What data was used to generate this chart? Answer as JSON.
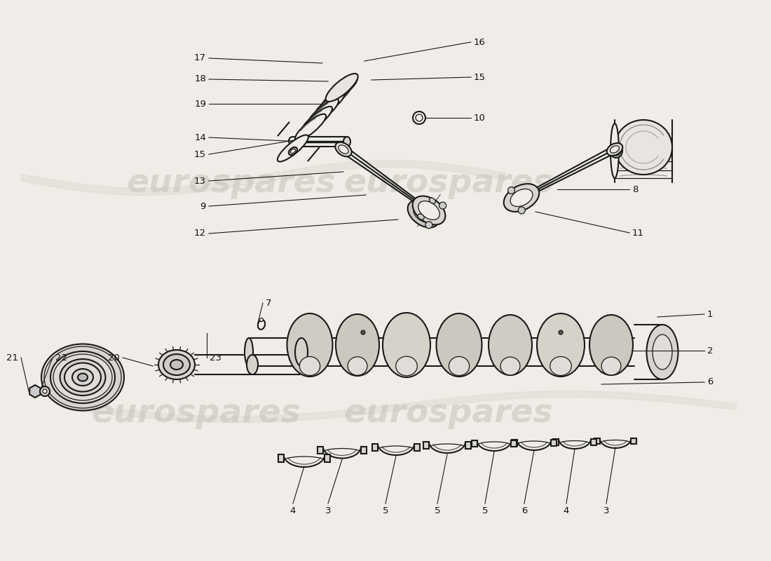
{
  "bg_color": "#f0ede8",
  "line_color": "#1a1a1a",
  "label_color": "#111111",
  "watermark": "eurospares",
  "watermark_color": "#c5c2ba",
  "label_fs": 9.5
}
